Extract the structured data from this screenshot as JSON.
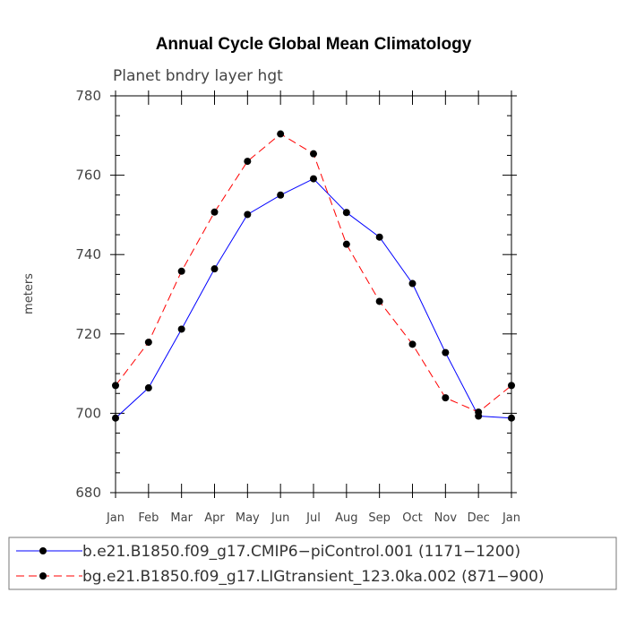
{
  "chart_data": {
    "type": "line",
    "title": "Annual Cycle Global Mean Climatology",
    "subtitle": "Planet bndry layer hgt",
    "ylabel": "meters",
    "xlabel": "",
    "ylim": [
      680,
      780
    ],
    "yticks": [
      680,
      700,
      720,
      740,
      760,
      780
    ],
    "categories": [
      "Jan",
      "Feb",
      "Mar",
      "Apr",
      "May",
      "Jun",
      "Jul",
      "Aug",
      "Sep",
      "Oct",
      "Nov",
      "Dec",
      "Jan"
    ],
    "series": [
      {
        "name": "b.e21.B1850.f09_g17.CMIP6−piControl.001 (1171−1200)",
        "color": "#0000ff",
        "dash": "solid",
        "values": [
          698.8,
          706.4,
          721.2,
          736.4,
          750.1,
          755.0,
          759.1,
          750.6,
          744.4,
          732.7,
          715.3,
          699.3,
          698.8
        ]
      },
      {
        "name": "bg.e21.B1850.f09_g17.LIGtransient_123.0ka.002 (871−900)",
        "color": "#ff0000",
        "dash": "dashed",
        "values": [
          707.0,
          717.9,
          735.8,
          750.7,
          763.5,
          770.4,
          765.4,
          742.6,
          728.2,
          717.4,
          703.9,
          700.3,
          707.0
        ]
      }
    ]
  }
}
